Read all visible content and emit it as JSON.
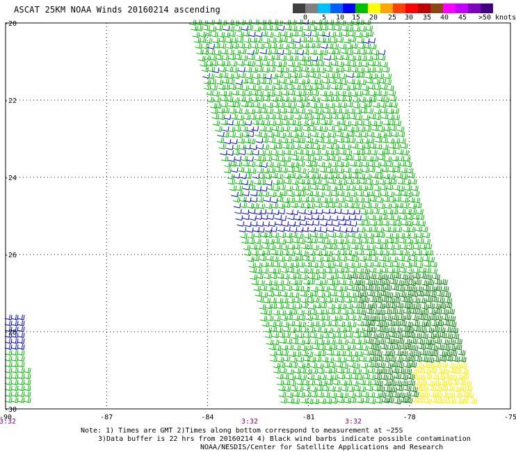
{
  "title": "ASCAT 25KM NOAA Winds 20160214 ascending",
  "colorbar": {
    "colors": [
      "#404040",
      "#808080",
      "#00bfff",
      "#0060ff",
      "#0000ff",
      "#00c000",
      "#ffff00",
      "#ffa500",
      "#ff4000",
      "#ff0000",
      "#c00000",
      "#8b4513",
      "#ff00ff",
      "#c000ff",
      "#8000c0",
      "#400080"
    ],
    "labels": [
      "0",
      "5",
      "10",
      "15",
      "20",
      "25",
      "30",
      "35",
      "40",
      "45",
      ">50 knots"
    ]
  },
  "map": {
    "lon_range": [
      -90,
      -75
    ],
    "lat_range": [
      -30,
      -20
    ],
    "lon_ticks": [
      "-90",
      "-87",
      "-84",
      "-81",
      "-78",
      "-75"
    ],
    "lat_ticks": [
      "-20",
      "-22",
      "-24",
      "-26",
      "-28",
      "-30"
    ],
    "times": [
      "3:32",
      "3:32",
      "3:32"
    ],
    "wind_colors": {
      "blue": "#0000cc",
      "green": "#00bb00",
      "dark_green": "#008000",
      "yellow": "#ffee00"
    }
  },
  "notes": {
    "line1": "Note: 1) Times are GMT 2)Times along bottom correspond to measurement at ~25S",
    "line2": "3)Data buffer is 22 hrs from 20160214 4) Black wind barbs indicate possible contamination",
    "line3": "NOAA/NESDIS/Center for Satellite Applications and Research"
  }
}
